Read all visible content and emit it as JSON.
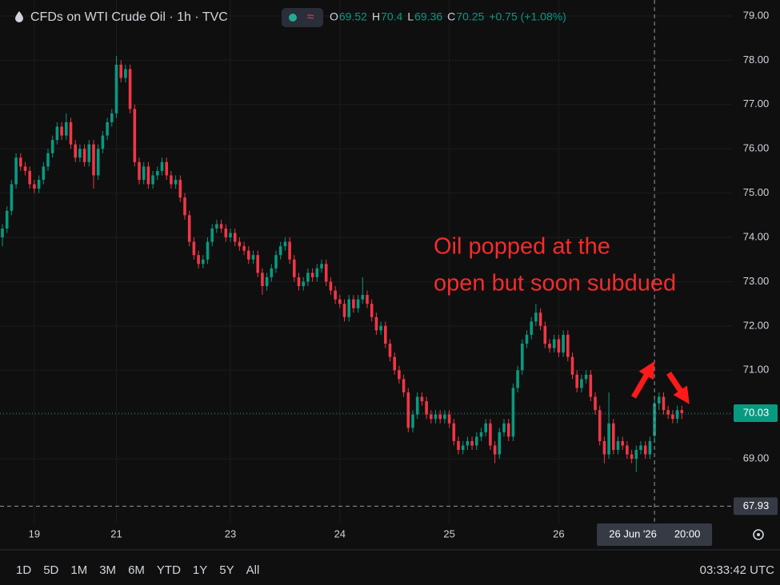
{
  "header": {
    "symbol": "CFDs on WTI Crude Oil · 1h · TVC",
    "ohlc_labels": [
      "O",
      "H",
      "L",
      "C"
    ],
    "change": "+0.75 (+1.08%)"
  },
  "toolbar": {
    "timeframes": [
      "1D",
      "5D",
      "1M",
      "3M",
      "6M",
      "YTD",
      "1Y",
      "5Y",
      "All"
    ],
    "clock": "03:33:42 UTC"
  },
  "chart_data": {
    "type": "candlestick",
    "up_color": "#089981",
    "down_color": "#f23645",
    "grid": true,
    "annotation": [
      "Oil popped at the",
      "open but soon subdued"
    ],
    "last_price": 70.03,
    "crosshair": {
      "date": "26 Jun '26",
      "time": "20:00",
      "price": 67.93
    },
    "ylim": [
      67.54,
      79.36
    ],
    "yticks": [
      {
        "value": 69,
        "label": "69.00"
      },
      {
        "value": 70,
        "label": "70.00"
      },
      {
        "value": 71,
        "label": "71.00"
      },
      {
        "value": 72,
        "label": "72.00"
      },
      {
        "value": 73,
        "label": "73.00"
      },
      {
        "value": 74,
        "label": "74.00"
      },
      {
        "value": 75,
        "label": "75.00"
      },
      {
        "value": 76,
        "label": "76.00"
      },
      {
        "value": 77,
        "label": "77.00"
      },
      {
        "value": 78,
        "label": "78.00"
      },
      {
        "value": 79,
        "label": "79.00"
      }
    ],
    "categories": [
      null,
      null,
      null,
      null,
      null,
      null,
      null,
      "19",
      null,
      null,
      null,
      null,
      null,
      null,
      null,
      null,
      null,
      null,
      null,
      null,
      null,
      null,
      null,
      null,
      null,
      "21",
      null,
      null,
      null,
      null,
      null,
      null,
      null,
      null,
      null,
      null,
      null,
      null,
      null,
      null,
      null,
      null,
      null,
      null,
      null,
      null,
      null,
      null,
      null,
      null,
      "23",
      null,
      null,
      null,
      null,
      null,
      null,
      null,
      null,
      null,
      null,
      null,
      null,
      null,
      null,
      null,
      null,
      null,
      null,
      null,
      null,
      null,
      null,
      null,
      "24",
      null,
      null,
      null,
      null,
      null,
      null,
      null,
      null,
      null,
      null,
      null,
      null,
      null,
      null,
      null,
      null,
      null,
      null,
      null,
      null,
      null,
      null,
      null,
      "25",
      null,
      null,
      null,
      null,
      null,
      null,
      null,
      null,
      null,
      null,
      null,
      null,
      null,
      null,
      null,
      null,
      null,
      null,
      null,
      null,
      null,
      null,
      null,
      "26",
      null,
      null,
      null,
      null,
      null,
      null,
      null,
      null,
      null,
      null,
      null,
      null,
      null,
      null,
      null,
      null,
      null,
      null,
      null,
      null,
      null,
      null,
      null,
      null,
      null,
      null,
      null
    ],
    "open": [
      74.0,
      74.2,
      74.6,
      75.2,
      75.8,
      75.6,
      75.5,
      75.2,
      75.1,
      75.3,
      75.6,
      75.9,
      76.2,
      76.5,
      76.3,
      76.6,
      76.1,
      75.8,
      76.0,
      75.7,
      76.1,
      75.4,
      76.0,
      76.3,
      76.6,
      76.8,
      77.9,
      77.6,
      77.8,
      76.9,
      75.7,
      75.3,
      75.6,
      75.2,
      75.4,
      75.5,
      75.7,
      75.4,
      75.2,
      75.3,
      74.9,
      74.5,
      73.9,
      73.6,
      73.4,
      73.5,
      73.9,
      74.2,
      74.3,
      74.2,
      74.0,
      74.1,
      73.9,
      73.8,
      73.7,
      73.5,
      73.6,
      73.2,
      72.9,
      73.1,
      73.3,
      73.6,
      73.8,
      73.9,
      73.5,
      73.1,
      72.9,
      73.0,
      73.2,
      73.1,
      73.3,
      73.4,
      73.0,
      72.8,
      72.6,
      72.5,
      72.2,
      72.6,
      72.4,
      72.6,
      72.7,
      72.5,
      72.2,
      71.9,
      72.0,
      71.6,
      71.3,
      71.0,
      70.8,
      70.5,
      69.7,
      70.0,
      70.4,
      70.3,
      70.0,
      69.9,
      70.0,
      69.9,
      70.0,
      69.8,
      69.4,
      69.2,
      69.3,
      69.4,
      69.3,
      69.5,
      69.6,
      69.8,
      69.3,
      69.1,
      69.6,
      69.8,
      69.5,
      70.6,
      71.0,
      71.6,
      71.8,
      72.1,
      72.3,
      72.0,
      71.6,
      71.5,
      71.7,
      71.4,
      71.8,
      71.3,
      70.9,
      70.6,
      70.8,
      70.9,
      70.4,
      70.1,
      69.4,
      69.1,
      69.8,
      69.2,
      69.4,
      69.3,
      69.1,
      69.0,
      69.2,
      69.3,
      69.1,
      69.52,
      70.25,
      70.4,
      70.1,
      70.0,
      69.9,
      70.1
    ],
    "high": [
      74.3,
      74.7,
      75.3,
      75.9,
      75.9,
      75.7,
      75.6,
      75.3,
      75.4,
      75.7,
      76.0,
      76.3,
      76.6,
      76.6,
      76.8,
      76.7,
      76.2,
      76.1,
      76.1,
      76.2,
      76.2,
      76.1,
      76.4,
      76.7,
      76.9,
      78.1,
      78.0,
      77.9,
      77.9,
      77.0,
      75.8,
      75.7,
      75.7,
      75.5,
      75.6,
      75.8,
      75.8,
      75.5,
      75.4,
      75.4,
      75.0,
      74.6,
      74.0,
      73.7,
      73.6,
      74.0,
      74.3,
      74.4,
      74.4,
      74.3,
      74.2,
      74.2,
      74.0,
      73.9,
      73.8,
      73.7,
      73.7,
      73.3,
      73.2,
      73.4,
      73.7,
      73.9,
      74.0,
      74.0,
      73.6,
      73.2,
      73.1,
      73.3,
      73.3,
      73.4,
      73.5,
      73.5,
      73.1,
      72.9,
      72.7,
      72.6,
      72.7,
      72.7,
      72.7,
      73.1,
      72.8,
      72.6,
      72.3,
      72.1,
      72.1,
      71.7,
      71.4,
      71.1,
      70.9,
      70.6,
      70.1,
      70.5,
      70.5,
      70.4,
      70.1,
      70.1,
      70.1,
      70.1,
      70.1,
      69.9,
      69.5,
      69.4,
      69.5,
      69.5,
      69.6,
      69.7,
      69.9,
      69.9,
      69.4,
      69.7,
      69.9,
      69.9,
      70.7,
      71.1,
      71.7,
      71.9,
      72.2,
      72.5,
      72.4,
      72.1,
      71.7,
      71.8,
      71.8,
      71.9,
      71.9,
      71.4,
      71.0,
      70.9,
      71.0,
      71.0,
      70.5,
      70.2,
      69.5,
      70.5,
      69.9,
      69.5,
      69.5,
      69.4,
      69.2,
      69.3,
      69.4,
      69.4,
      69.5,
      70.4,
      70.5,
      70.5,
      70.2,
      70.1,
      70.2,
      70.2
    ],
    "low": [
      73.8,
      74.1,
      74.5,
      75.1,
      75.5,
      75.4,
      75.1,
      75.0,
      75.0,
      75.2,
      75.5,
      75.8,
      76.1,
      76.2,
      76.2,
      76.0,
      75.7,
      75.7,
      75.6,
      75.6,
      75.1,
      75.3,
      75.9,
      76.2,
      76.5,
      76.7,
      77.5,
      77.5,
      76.8,
      75.6,
      75.2,
      75.2,
      75.1,
      75.1,
      75.3,
      75.4,
      75.3,
      75.1,
      75.1,
      74.8,
      74.4,
      73.8,
      73.5,
      73.3,
      73.3,
      73.4,
      73.8,
      74.1,
      74.1,
      73.9,
      73.9,
      73.8,
      73.7,
      73.6,
      73.4,
      73.4,
      73.1,
      72.7,
      72.8,
      73.0,
      73.2,
      73.5,
      73.7,
      73.4,
      73.0,
      72.8,
      72.8,
      72.9,
      73.0,
      73.0,
      73.2,
      72.9,
      72.7,
      72.5,
      72.4,
      72.1,
      72.1,
      72.3,
      72.3,
      72.5,
      72.4,
      72.1,
      71.8,
      71.8,
      71.5,
      71.2,
      70.9,
      70.7,
      70.4,
      69.6,
      69.6,
      69.9,
      70.2,
      69.9,
      69.8,
      69.8,
      69.8,
      69.8,
      69.7,
      69.3,
      69.1,
      69.1,
      69.2,
      69.2,
      69.2,
      69.4,
      69.5,
      69.2,
      68.9,
      69.0,
      69.5,
      69.4,
      69.4,
      70.5,
      70.9,
      71.5,
      71.7,
      72.0,
      71.9,
      71.5,
      71.4,
      71.4,
      71.3,
      71.3,
      71.2,
      70.8,
      70.5,
      70.5,
      70.7,
      70.3,
      70.0,
      69.3,
      68.9,
      69.0,
      69.1,
      69.1,
      69.2,
      69.0,
      68.9,
      68.7,
      69.1,
      69.0,
      69.0,
      69.36,
      70.1,
      70.0,
      69.9,
      69.8,
      69.8,
      69.9
    ],
    "close": [
      74.2,
      74.6,
      75.2,
      75.8,
      75.6,
      75.5,
      75.2,
      75.1,
      75.3,
      75.6,
      75.9,
      76.2,
      76.5,
      76.3,
      76.6,
      76.1,
      75.8,
      76.0,
      75.7,
      76.1,
      75.4,
      76.0,
      76.3,
      76.6,
      76.8,
      77.9,
      77.6,
      77.8,
      76.9,
      75.7,
      75.3,
      75.6,
      75.2,
      75.4,
      75.5,
      75.7,
      75.4,
      75.2,
      75.3,
      74.9,
      74.5,
      73.9,
      73.6,
      73.4,
      73.5,
      73.9,
      74.2,
      74.3,
      74.2,
      74.0,
      74.1,
      73.9,
      73.8,
      73.7,
      73.5,
      73.6,
      73.2,
      72.9,
      73.1,
      73.3,
      73.6,
      73.8,
      73.9,
      73.5,
      73.1,
      72.9,
      73.0,
      73.2,
      73.1,
      73.3,
      73.4,
      73.0,
      72.8,
      72.6,
      72.5,
      72.2,
      72.6,
      72.4,
      72.6,
      72.7,
      72.5,
      72.2,
      71.9,
      72.0,
      71.6,
      71.3,
      71.0,
      70.8,
      70.5,
      69.7,
      70.0,
      70.4,
      70.3,
      70.0,
      69.9,
      70.0,
      69.9,
      70.0,
      69.8,
      69.4,
      69.2,
      69.3,
      69.4,
      69.3,
      69.5,
      69.6,
      69.8,
      69.3,
      69.1,
      69.6,
      69.8,
      69.5,
      70.6,
      71.0,
      71.6,
      71.8,
      72.1,
      72.3,
      72.0,
      71.6,
      71.5,
      71.7,
      71.4,
      71.8,
      71.3,
      70.9,
      70.6,
      70.8,
      70.9,
      70.4,
      70.1,
      69.4,
      69.1,
      69.8,
      69.2,
      69.4,
      69.3,
      69.1,
      69.0,
      69.2,
      69.3,
      69.1,
      69.4,
      70.25,
      70.4,
      70.1,
      70.0,
      69.9,
      70.1,
      70.03
    ]
  }
}
